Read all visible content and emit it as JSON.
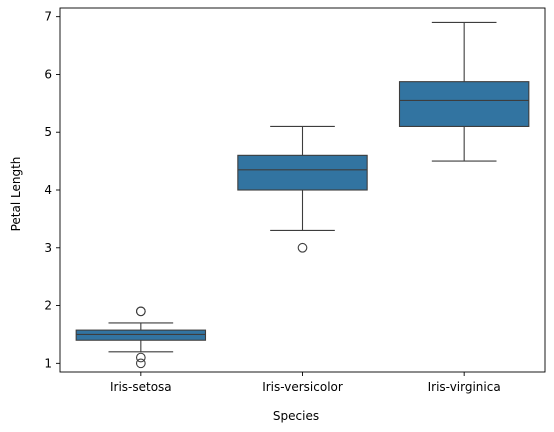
{
  "chart_data": {
    "type": "box",
    "title": "",
    "xlabel": "Species",
    "ylabel": "Petal Length",
    "categories": [
      "Iris-setosa",
      "Iris-versicolor",
      "Iris-virginica"
    ],
    "ylim": [
      0.85,
      7.15
    ],
    "yticks": [
      1,
      2,
      3,
      4,
      5,
      6,
      7
    ],
    "grid": false,
    "legend": "none",
    "box_color": "#3274a1",
    "line_color": "#3d3d3d",
    "boxes": [
      {
        "category": "Iris-setosa",
        "whisker_low": 1.2,
        "q1": 1.4,
        "median": 1.5,
        "q3": 1.575,
        "whisker_high": 1.7,
        "outliers": [
          1.0,
          1.1,
          1.9,
          1.9
        ]
      },
      {
        "category": "Iris-versicolor",
        "whisker_low": 3.3,
        "q1": 4.0,
        "median": 4.35,
        "q3": 4.6,
        "whisker_high": 5.1,
        "outliers": [
          3.0
        ]
      },
      {
        "category": "Iris-virginica",
        "whisker_low": 4.5,
        "q1": 5.1,
        "median": 5.55,
        "q3": 5.875,
        "whisker_high": 6.9,
        "outliers": []
      }
    ]
  }
}
